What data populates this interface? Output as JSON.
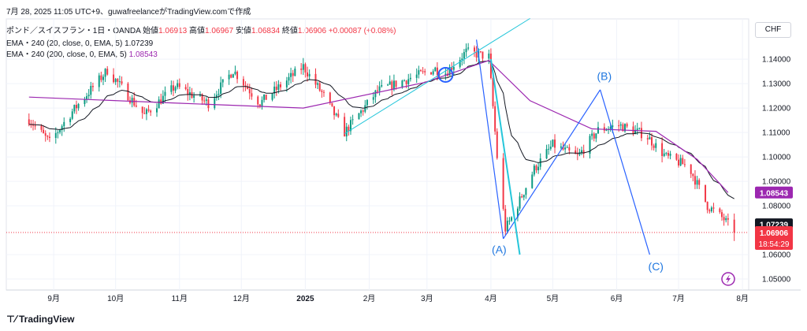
{
  "header": {
    "meta": "7月 28, 2025 11:05 UTC+9、guwafreelanceがTradingView.comで作成",
    "symbol": "ポンド／スイスフラン・1日・OANDA",
    "open_label": "始値",
    "open_value": "1.06913",
    "high_label": "高値",
    "high_value": "1.06967",
    "low_label": "安値",
    "low_value": "1.06834",
    "close_label": "終値",
    "close_value": "1.06906",
    "change": "+0.00087 (+0.08%)",
    "ema20_label": "EMA・240 (20, close, 0, EMA, 5)",
    "ema20_value": "1.07239",
    "ema200_label": "EMA・240 (200, close, 0, EMA, 5)",
    "ema200_value": "1.08543"
  },
  "currency": "CHF",
  "brand": "TradingView",
  "colors": {
    "up": "#089981",
    "down": "#f23645",
    "ema20": "#131722",
    "ema200": "#9c27b0",
    "trendline": "#26c6da",
    "wave": "#2962ff",
    "accent": "#1f77e0"
  },
  "chart_data": {
    "type": "candlestick",
    "x_tick_labels": [
      "9月",
      "10月",
      "11月",
      "12月",
      "2025",
      "2月",
      "3月",
      "4月",
      "5月",
      "6月",
      "7月",
      "8月"
    ],
    "y_tick_labels": [
      "1.14000",
      "1.13000",
      "1.12000",
      "1.11000",
      "1.10000",
      "1.09000",
      "1.08000",
      "1.06000",
      "1.05000"
    ],
    "ylim": [
      1.0455,
      1.1565
    ],
    "price_tags": [
      {
        "label": "1.08543",
        "value": 1.08543,
        "color": "#9c27b0",
        "text_color": "#ffffff"
      },
      {
        "label": "1.07239",
        "value": 1.07239,
        "color": "#131722",
        "text_color": "#ffffff"
      },
      {
        "label": "1.06906",
        "value": 1.06906,
        "color": "#f23645",
        "text_color": "#ffffff"
      }
    ],
    "countdown": "18:54:29",
    "key_points": [
      {
        "date": "2024-08-20",
        "price": 1.1154
      },
      {
        "date": "2024-08-30",
        "price": 1.106
      },
      {
        "date": "2024-09-10",
        "price": 1.1186
      },
      {
        "date": "2024-09-27",
        "price": 1.1355
      },
      {
        "date": "2024-10-15",
        "price": 1.117
      },
      {
        "date": "2024-10-30",
        "price": 1.129
      },
      {
        "date": "2024-11-15",
        "price": 1.122
      },
      {
        "date": "2024-11-27",
        "price": 1.1355
      },
      {
        "date": "2024-12-10",
        "price": 1.122
      },
      {
        "date": "2024-12-31",
        "price": 1.137
      },
      {
        "date": "2025-01-10",
        "price": 1.125
      },
      {
        "date": "2025-01-20",
        "price": 1.11
      },
      {
        "date": "2025-02-05",
        "price": 1.127
      },
      {
        "date": "2025-02-20",
        "price": 1.132
      },
      {
        "date": "2025-03-05",
        "price": 1.136
      },
      {
        "date": "2025-03-10",
        "price": 1.1345
      },
      {
        "date": "2025-03-20",
        "price": 1.143
      },
      {
        "date": "2025-03-31",
        "price": 1.141
      },
      {
        "date": "2025-04-04",
        "price": 1.1
      },
      {
        "date": "2025-04-08",
        "price": 1.0705
      },
      {
        "date": "2025-04-11",
        "price": 1.075
      },
      {
        "date": "2025-04-22",
        "price": 1.095
      },
      {
        "date": "2025-05-01",
        "price": 1.105
      },
      {
        "date": "2025-05-13",
        "price": 1.1
      },
      {
        "date": "2025-05-23",
        "price": 1.111
      },
      {
        "date": "2025-06-02",
        "price": 1.113
      },
      {
        "date": "2025-06-15",
        "price": 1.109
      },
      {
        "date": "2025-06-25",
        "price": 1.1
      },
      {
        "date": "2025-07-06",
        "price": 1.096
      },
      {
        "date": "2025-07-15",
        "price": 1.08
      },
      {
        "date": "2025-07-23",
        "price": 1.0745
      },
      {
        "date": "2025-07-28",
        "price": 1.06906
      }
    ],
    "ema200": [
      {
        "date": "2024-08-20",
        "price": 1.1245
      },
      {
        "date": "2024-10-31",
        "price": 1.122
      },
      {
        "date": "2024-12-31",
        "price": 1.12
      },
      {
        "date": "2025-02-28",
        "price": 1.1305
      },
      {
        "date": "2025-03-31",
        "price": 1.1395
      },
      {
        "date": "2025-04-20",
        "price": 1.123
      },
      {
        "date": "2025-05-20",
        "price": 1.1115
      },
      {
        "date": "2025-06-20",
        "price": 1.1105
      },
      {
        "date": "2025-07-10",
        "price": 1.099
      },
      {
        "date": "2025-07-25",
        "price": 1.08543
      }
    ],
    "trendline": [
      {
        "date": "2025-01-20",
        "price": 1.1095
      },
      {
        "date": "2025-04-20",
        "price": 1.1567
      }
    ],
    "circle_marker": {
      "date": "2025-03-10",
      "price": 1.1336
    },
    "waves": [
      {
        "from": {
          "date": "2025-03-25",
          "price": 1.148
        },
        "to": {
          "date": "2025-04-07",
          "price": 1.0665
        }
      },
      {
        "from": {
          "date": "2025-04-07",
          "price": 1.0665
        },
        "to": {
          "date": "2025-05-24",
          "price": 1.1275
        }
      },
      {
        "from": {
          "date": "2025-05-24",
          "price": 1.1275
        },
        "to": {
          "date": "2025-06-17",
          "price": 1.06
        }
      },
      {
        "from": {
          "date": "2025-04-01",
          "price": 1.14
        },
        "to": {
          "date": "2025-04-15",
          "price": 1.06
        }
      }
    ],
    "annotations": [
      {
        "label": "(A)",
        "date": "2025-04-05",
        "price": 1.0605
      },
      {
        "label": "(B)",
        "date": "2025-05-26",
        "price": 1.1315
      },
      {
        "label": "(C)",
        "date": "2025-06-20",
        "price": 1.0535
      }
    ]
  }
}
